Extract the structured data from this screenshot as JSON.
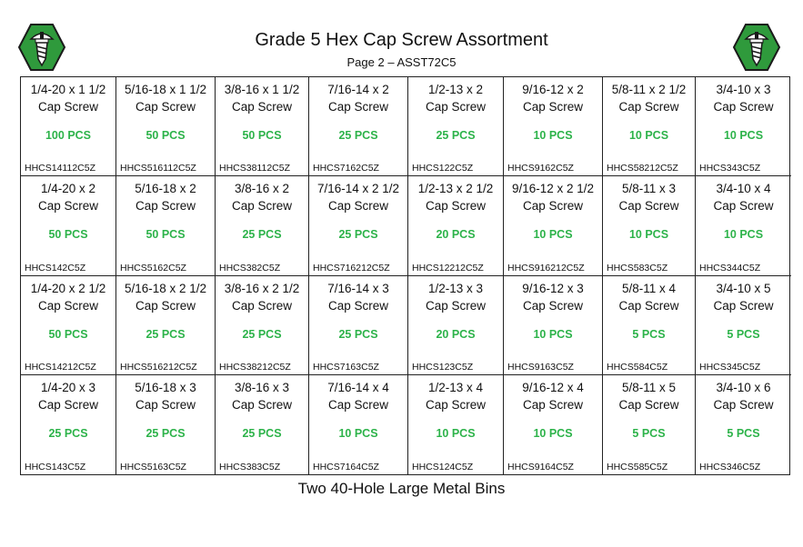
{
  "header": {
    "title": "Grade 5 Hex Cap Screw Assortment",
    "subtitle": "Page 2 – ASST72C5"
  },
  "colors": {
    "accent": "#2db34a",
    "logo_green": "#2f9a3c",
    "logo_outline": "#1a1a1a"
  },
  "icons": {
    "logo": "screw-hexagon-logo-icon"
  },
  "rows": [
    [
      {
        "size": "1/4-20 x 1 1/2",
        "type": "Cap Screw",
        "qty": "100 PCS",
        "part": "HHCS14112C5Z"
      },
      {
        "size": "5/16-18 x 1 1/2",
        "type": "Cap Screw",
        "qty": "50 PCS",
        "part": "HHCS516112C5Z"
      },
      {
        "size": "3/8-16 x 1 1/2",
        "type": "Cap Screw",
        "qty": "50 PCS",
        "part": "HHCS38112C5Z"
      },
      {
        "size": "7/16-14 x 2",
        "type": "Cap Screw",
        "qty": "25 PCS",
        "part": "HHCS7162C5Z"
      },
      {
        "size": "1/2-13 x 2",
        "type": "Cap Screw",
        "qty": "25 PCS",
        "part": "HHCS122C5Z"
      },
      {
        "size": "9/16-12 x 2",
        "type": "Cap Screw",
        "qty": "10 PCS",
        "part": "HHCS9162C5Z"
      },
      {
        "size": "5/8-11 x 2 1/2",
        "type": "Cap Screw",
        "qty": "10 PCS",
        "part": "HHCS58212C5Z"
      },
      {
        "size": "3/4-10 x 3",
        "type": "Cap Screw",
        "qty": "10 PCS",
        "part": "HHCS343C5Z"
      }
    ],
    [
      {
        "size": "1/4-20 x 2",
        "type": "Cap Screw",
        "qty": "50 PCS",
        "part": "HHCS142C5Z"
      },
      {
        "size": "5/16-18 x 2",
        "type": "Cap Screw",
        "qty": "50 PCS",
        "part": "HHCS5162C5Z"
      },
      {
        "size": "3/8-16 x 2",
        "type": "Cap Screw",
        "qty": "25 PCS",
        "part": "HHCS382C5Z"
      },
      {
        "size": "7/16-14 x 2 1/2",
        "type": "Cap Screw",
        "qty": "25 PCS",
        "part": "HHCS716212C5Z"
      },
      {
        "size": "1/2-13 x 2 1/2",
        "type": "Cap Screw",
        "qty": "20 PCS",
        "part": "HHCS12212C5Z"
      },
      {
        "size": "9/16-12 x 2 1/2",
        "type": "Cap Screw",
        "qty": "10 PCS",
        "part": "HHCS916212C5Z"
      },
      {
        "size": "5/8-11 x 3",
        "type": "Cap Screw",
        "qty": "10 PCS",
        "part": "HHCS583C5Z"
      },
      {
        "size": "3/4-10 x 4",
        "type": "Cap Screw",
        "qty": "10 PCS",
        "part": "HHCS344C5Z"
      }
    ],
    [
      {
        "size": "1/4-20 x 2 1/2",
        "type": "Cap Screw",
        "qty": "50 PCS",
        "part": "HHCS14212C5Z"
      },
      {
        "size": "5/16-18 x 2 1/2",
        "type": "Cap Screw",
        "qty": "25 PCS",
        "part": "HHCS516212C5Z"
      },
      {
        "size": "3/8-16 x 2 1/2",
        "type": "Cap Screw",
        "qty": "25 PCS",
        "part": "HHCS38212C5Z"
      },
      {
        "size": "7/16-14 x 3",
        "type": "Cap Screw",
        "qty": "25 PCS",
        "part": "HHCS7163C5Z"
      },
      {
        "size": "1/2-13 x 3",
        "type": "Cap Screw",
        "qty": "20 PCS",
        "part": "HHCS123C5Z"
      },
      {
        "size": "9/16-12 x 3",
        "type": "Cap Screw",
        "qty": "10 PCS",
        "part": "HHCS9163C5Z"
      },
      {
        "size": "5/8-11 x 4",
        "type": "Cap Screw",
        "qty": "5 PCS",
        "part": "HHCS584C5Z"
      },
      {
        "size": "3/4-10 x 5",
        "type": "Cap Screw",
        "qty": "5 PCS",
        "part": "HHCS345C5Z"
      }
    ],
    [
      {
        "size": "1/4-20 x 3",
        "type": "Cap Screw",
        "qty": "25 PCS",
        "part": "HHCS143C5Z"
      },
      {
        "size": "5/16-18 x 3",
        "type": "Cap Screw",
        "qty": "25 PCS",
        "part": "HHCS5163C5Z"
      },
      {
        "size": "3/8-16 x 3",
        "type": "Cap Screw",
        "qty": "25 PCS",
        "part": "HHCS383C5Z"
      },
      {
        "size": "7/16-14 x 4",
        "type": "Cap Screw",
        "qty": "10 PCS",
        "part": "HHCS7164C5Z"
      },
      {
        "size": "1/2-13 x 4",
        "type": "Cap Screw",
        "qty": "10 PCS",
        "part": "HHCS124C5Z"
      },
      {
        "size": "9/16-12 x 4",
        "type": "Cap Screw",
        "qty": "10 PCS",
        "part": "HHCS9164C5Z"
      },
      {
        "size": "5/8-11 x 5",
        "type": "Cap Screw",
        "qty": "5 PCS",
        "part": "HHCS585C5Z"
      },
      {
        "size": "3/4-10 x 6",
        "type": "Cap Screw",
        "qty": "5 PCS",
        "part": "HHCS346C5Z"
      }
    ]
  ],
  "footer": {
    "text": "Two 40-Hole Large Metal Bins"
  }
}
